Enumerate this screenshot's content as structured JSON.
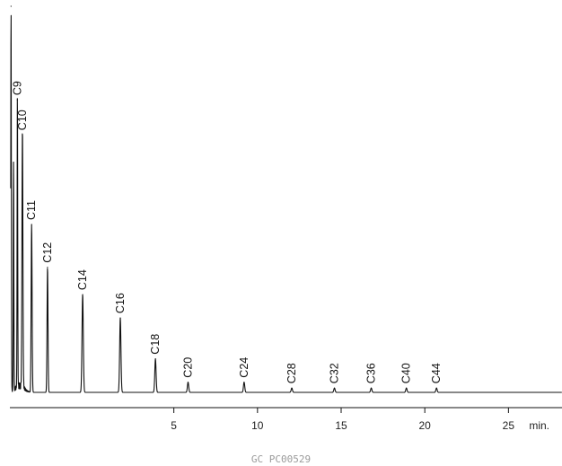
{
  "chart_data": {
    "type": "line",
    "title": "",
    "xlabel": "min.",
    "ylabel": "",
    "xlim": [
      -4.8,
      28.2
    ],
    "ylim": [
      0,
      100
    ],
    "xticks": [
      5,
      10,
      15,
      20,
      25
    ],
    "grid": false,
    "baseline": 0.9,
    "series": [
      {
        "peaks": [
          {
            "label": "",
            "rt": -4.73,
            "height": 100
          },
          {
            "label": "",
            "rt": -4.58,
            "height": 60
          },
          {
            "label": "C9",
            "rt": -4.35,
            "height": 76
          },
          {
            "label": "C10",
            "rt": -4.05,
            "height": 67
          },
          {
            "label": "C11",
            "rt": -3.5,
            "height": 44
          },
          {
            "label": "C12",
            "rt": -2.55,
            "height": 33
          },
          {
            "label": "C14",
            "rt": -0.45,
            "height": 26
          },
          {
            "label": "C16",
            "rt": 1.8,
            "height": 20
          },
          {
            "label": "C18",
            "rt": 3.9,
            "height": 9.5
          },
          {
            "label": "C20",
            "rt": 5.85,
            "height": 3.5
          },
          {
            "label": "C24",
            "rt": 9.2,
            "height": 3.5
          },
          {
            "label": "C28",
            "rt": 12.05,
            "height": 2
          },
          {
            "label": "C32",
            "rt": 14.6,
            "height": 2
          },
          {
            "label": "C36",
            "rt": 16.8,
            "height": 2
          },
          {
            "label": "C40",
            "rt": 18.9,
            "height": 2
          },
          {
            "label": "C44",
            "rt": 20.7,
            "height": 2
          }
        ]
      }
    ]
  },
  "footer": {
    "code": "GC PC00529"
  }
}
